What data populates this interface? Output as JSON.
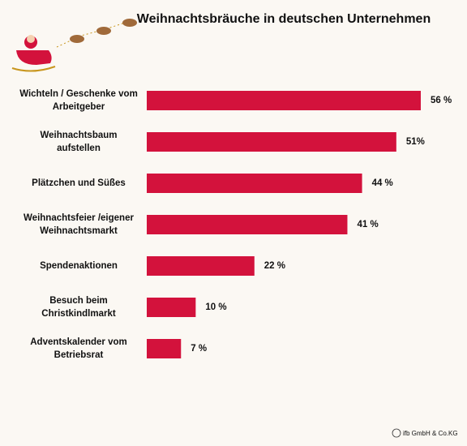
{
  "chart_data": {
    "type": "bar",
    "orientation": "horizontal",
    "title": "Weihnachtsbräuche in deutschen Unternehmen",
    "categories": [
      [
        "Wichteln / Geschenke vom",
        "Arbeitgeber"
      ],
      [
        "Weihnachtsbaum",
        "aufstellen"
      ],
      [
        "Plätzchen und Süßes"
      ],
      [
        "Weihnachtsfeier /eigener",
        "Weihnachtsmarkt"
      ],
      [
        "Spendenaktionen"
      ],
      [
        "Besuch beim",
        "Christkindlmarkt"
      ],
      [
        "Adventskalender vom",
        "Betriebsrat"
      ]
    ],
    "values": [
      56,
      51,
      44,
      41,
      22,
      10,
      7
    ],
    "value_labels": [
      "56 %",
      "51%",
      "44 %",
      "41 %",
      "22 %",
      "10 %",
      "7 %"
    ],
    "color": "#d3123c",
    "source": "ifb GmbH & Co.KG"
  }
}
